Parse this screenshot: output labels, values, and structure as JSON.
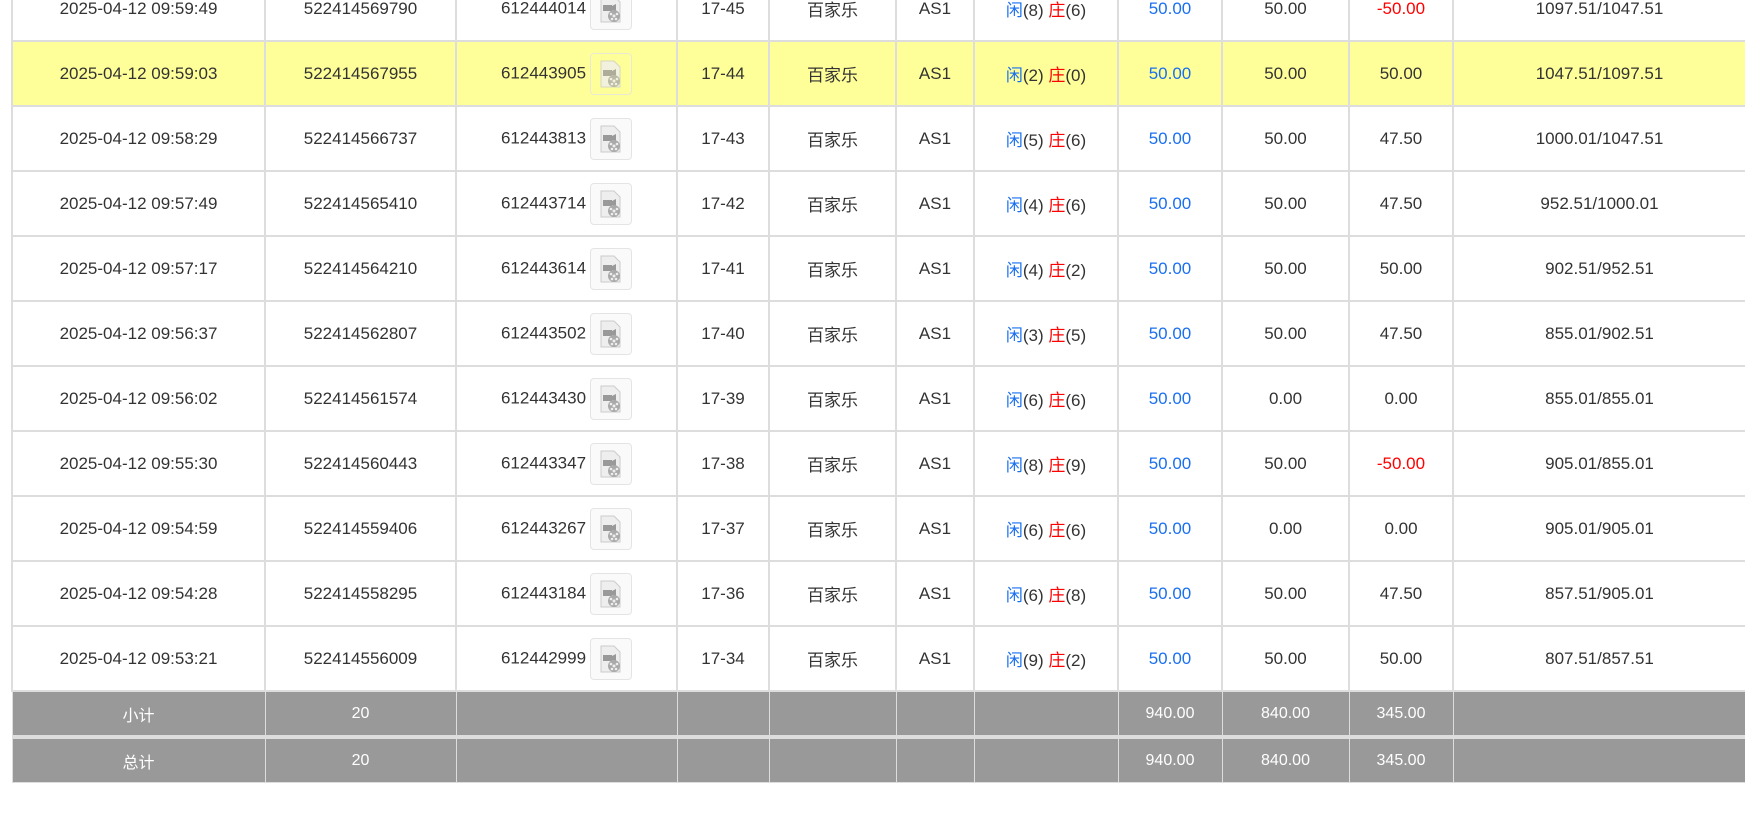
{
  "rows": [
    {
      "time": "2025-04-12 09:59:49",
      "bet_id": "522414569790",
      "game_id": "612444014",
      "round": "17-45",
      "game": "百家乐",
      "table": "AS1",
      "player_label": "闲",
      "player": "(8)",
      "banker_label": "庄",
      "banker": "(6)",
      "bet": "50.00",
      "valid": "50.00",
      "win": "-50.00",
      "win_negative": true,
      "balance": "1097.51/1047.51"
    },
    {
      "time": "2025-04-12 09:59:03",
      "bet_id": "522414567955",
      "game_id": "612443905",
      "round": "17-44",
      "game": "百家乐",
      "table": "AS1",
      "player_label": "闲",
      "player": "(2)",
      "banker_label": "庄",
      "banker": "(0)",
      "bet": "50.00",
      "valid": "50.00",
      "win": "50.00",
      "balance": "1047.51/1097.51",
      "highlighted": true
    },
    {
      "time": "2025-04-12 09:58:29",
      "bet_id": "522414566737",
      "game_id": "612443813",
      "round": "17-43",
      "game": "百家乐",
      "table": "AS1",
      "player_label": "闲",
      "player": "(5)",
      "banker_label": "庄",
      "banker": "(6)",
      "bet": "50.00",
      "valid": "50.00",
      "win": "47.50",
      "balance": "1000.01/1047.51"
    },
    {
      "time": "2025-04-12 09:57:49",
      "bet_id": "522414565410",
      "game_id": "612443714",
      "round": "17-42",
      "game": "百家乐",
      "table": "AS1",
      "player_label": "闲",
      "player": "(4)",
      "banker_label": "庄",
      "banker": "(6)",
      "bet": "50.00",
      "valid": "50.00",
      "win": "47.50",
      "balance": "952.51/1000.01"
    },
    {
      "time": "2025-04-12 09:57:17",
      "bet_id": "522414564210",
      "game_id": "612443614",
      "round": "17-41",
      "game": "百家乐",
      "table": "AS1",
      "player_label": "闲",
      "player": "(4)",
      "banker_label": "庄",
      "banker": "(2)",
      "bet": "50.00",
      "valid": "50.00",
      "win": "50.00",
      "balance": "902.51/952.51"
    },
    {
      "time": "2025-04-12 09:56:37",
      "bet_id": "522414562807",
      "game_id": "612443502",
      "round": "17-40",
      "game": "百家乐",
      "table": "AS1",
      "player_label": "闲",
      "player": "(3)",
      "banker_label": "庄",
      "banker": "(5)",
      "bet": "50.00",
      "valid": "50.00",
      "win": "47.50",
      "balance": "855.01/902.51"
    },
    {
      "time": "2025-04-12 09:56:02",
      "bet_id": "522414561574",
      "game_id": "612443430",
      "round": "17-39",
      "game": "百家乐",
      "table": "AS1",
      "player_label": "闲",
      "player": "(6)",
      "banker_label": "庄",
      "banker": "(6)",
      "bet": "50.00",
      "valid": "0.00",
      "win": "0.00",
      "balance": "855.01/855.01"
    },
    {
      "time": "2025-04-12 09:55:30",
      "bet_id": "522414560443",
      "game_id": "612443347",
      "round": "17-38",
      "game": "百家乐",
      "table": "AS1",
      "player_label": "闲",
      "player": "(8)",
      "banker_label": "庄",
      "banker": "(9)",
      "bet": "50.00",
      "valid": "50.00",
      "win": "-50.00",
      "win_negative": true,
      "balance": "905.01/855.01"
    },
    {
      "time": "2025-04-12 09:54:59",
      "bet_id": "522414559406",
      "game_id": "612443267",
      "round": "17-37",
      "game": "百家乐",
      "table": "AS1",
      "player_label": "闲",
      "player": "(6)",
      "banker_label": "庄",
      "banker": "(6)",
      "bet": "50.00",
      "valid": "0.00",
      "win": "0.00",
      "balance": "905.01/905.01"
    },
    {
      "time": "2025-04-12 09:54:28",
      "bet_id": "522414558295",
      "game_id": "612443184",
      "round": "17-36",
      "game": "百家乐",
      "table": "AS1",
      "player_label": "闲",
      "player": "(6)",
      "banker_label": "庄",
      "banker": "(8)",
      "bet": "50.00",
      "valid": "50.00",
      "win": "47.50",
      "balance": "857.51/905.01"
    },
    {
      "time": "2025-04-12 09:53:21",
      "bet_id": "522414556009",
      "game_id": "612442999",
      "round": "17-34",
      "game": "百家乐",
      "table": "AS1",
      "player_label": "闲",
      "player": "(9)",
      "banker_label": "庄",
      "banker": "(2)",
      "bet": "50.00",
      "valid": "50.00",
      "win": "50.00",
      "balance": "807.51/857.51"
    }
  ],
  "subtotal": {
    "label": "小计",
    "count": "20",
    "bet": "940.00",
    "valid": "840.00",
    "win": "345.00"
  },
  "total": {
    "label": "总计",
    "count": "20",
    "bet": "940.00",
    "valid": "840.00",
    "win": "345.00"
  },
  "colors": {
    "highlight": "#ffff99",
    "player": "#1a6ff0",
    "banker": "#ff0000",
    "summary_bg": "#999999"
  }
}
